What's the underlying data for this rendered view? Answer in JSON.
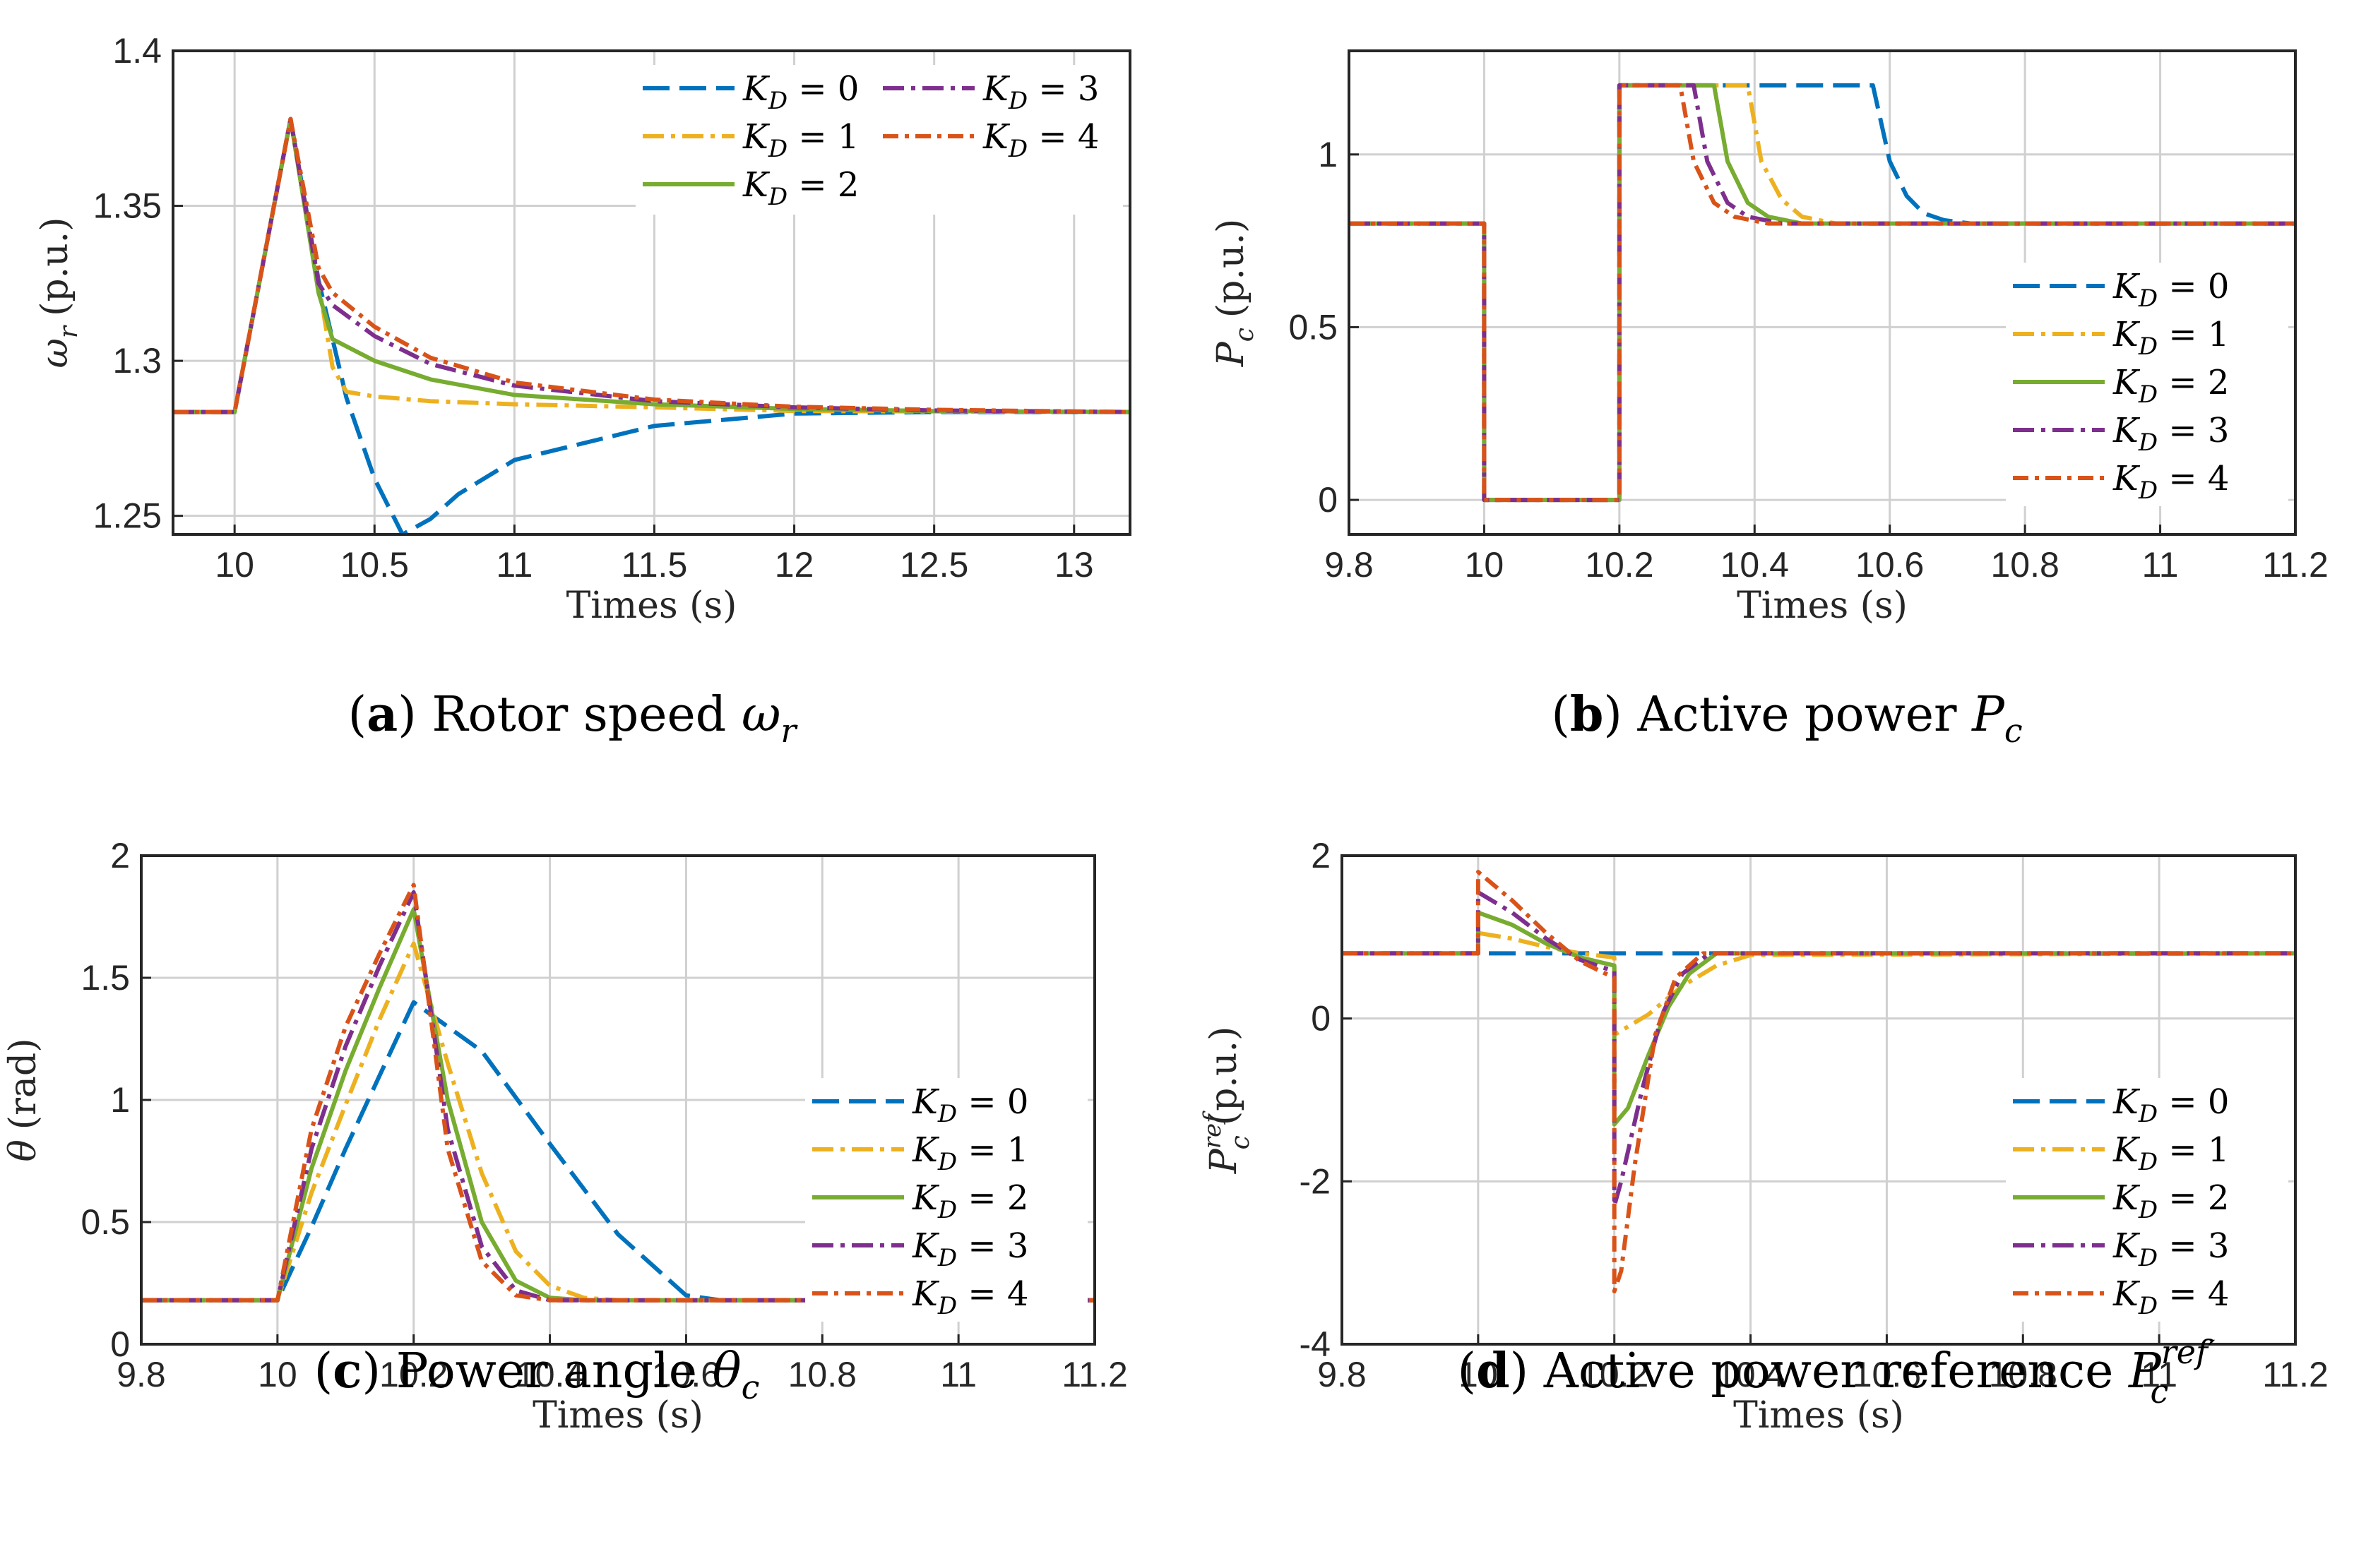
{
  "colors": {
    "series": [
      "#0072BD",
      "#EDB120",
      "#77AC30",
      "#7E2F8E",
      "#D95319"
    ],
    "grid": "#d0d0d0",
    "axis": "#262626"
  },
  "legend": [
    "K_D = 0",
    "K_D = 1",
    "K_D = 2",
    "K_D = 3",
    "K_D = 4"
  ],
  "chart_data": [
    {
      "id": "a",
      "type": "line",
      "caption_label": "(a)",
      "caption_text": "Rotor speed",
      "caption_symbol": "ω",
      "caption_sub": "r",
      "xlabel": "Times (s)",
      "ylabel": "ω_r (p.u.)",
      "ylabel_symbol": "ω",
      "ylabel_sub": "r",
      "ylabel_unit": "(p.u.)",
      "xlim": [
        9.78,
        13.2
      ],
      "ylim": [
        1.244,
        1.4
      ],
      "xticks": [
        10,
        10.5,
        11,
        11.5,
        12,
        12.5,
        13
      ],
      "xtick_labels": [
        "10",
        "10.5",
        "11",
        "11.5",
        "12",
        "12.5",
        "13"
      ],
      "yticks": [
        1.25,
        1.3,
        1.35,
        1.4
      ],
      "ytick_labels": [
        "1.25",
        "1.3",
        "1.35",
        "1.4"
      ],
      "legend_position": "top-right-two-columns",
      "series": [
        {
          "name": "K_D = 0",
          "x": [
            9.78,
            10,
            10.2,
            10.3,
            10.4,
            10.5,
            10.6,
            10.7,
            10.8,
            11,
            11.5,
            12,
            12.5,
            13,
            13.2
          ],
          "y": [
            1.2835,
            1.2835,
            1.378,
            1.326,
            1.288,
            1.262,
            1.244,
            1.249,
            1.257,
            1.268,
            1.279,
            1.283,
            1.2835,
            1.2835,
            1.2835
          ]
        },
        {
          "name": "K_D = 1",
          "x": [
            9.78,
            10,
            10.2,
            10.3,
            10.35,
            10.4,
            10.5,
            10.7,
            11,
            11.5,
            12,
            13.2
          ],
          "y": [
            1.2835,
            1.2835,
            1.378,
            1.325,
            1.298,
            1.29,
            1.2885,
            1.287,
            1.286,
            1.285,
            1.2838,
            1.2835
          ]
        },
        {
          "name": "K_D = 2",
          "x": [
            9.78,
            10,
            10.2,
            10.3,
            10.35,
            10.5,
            10.7,
            11,
            11.5,
            12,
            12.5,
            13.2
          ],
          "y": [
            1.2835,
            1.2835,
            1.378,
            1.322,
            1.307,
            1.3,
            1.294,
            1.289,
            1.286,
            1.2845,
            1.2838,
            1.2835
          ]
        },
        {
          "name": "K_D = 3",
          "x": [
            9.78,
            10,
            10.2,
            10.3,
            10.35,
            10.5,
            10.7,
            11,
            11.5,
            12,
            12.5,
            13.2
          ],
          "y": [
            1.2835,
            1.2835,
            1.378,
            1.325,
            1.318,
            1.308,
            1.299,
            1.292,
            1.287,
            1.285,
            1.284,
            1.2835
          ]
        },
        {
          "name": "K_D = 4",
          "x": [
            9.78,
            10,
            10.2,
            10.3,
            10.35,
            10.5,
            10.7,
            11,
            11.5,
            12,
            12.5,
            13.2
          ],
          "y": [
            1.2835,
            1.2835,
            1.378,
            1.33,
            1.322,
            1.311,
            1.301,
            1.293,
            1.2875,
            1.2852,
            1.2842,
            1.2835
          ]
        }
      ]
    },
    {
      "id": "b",
      "type": "line",
      "caption_label": "(b)",
      "caption_text": "Active power",
      "caption_symbol": "P",
      "caption_sub": "c",
      "xlabel": "Times (s)",
      "ylabel": "P_c (p.u.)",
      "ylabel_symbol": "P",
      "ylabel_sub": "c",
      "ylabel_unit": "(p.u.)",
      "xlim": [
        9.8,
        11.2
      ],
      "ylim": [
        -0.1,
        1.3
      ],
      "xticks": [
        9.8,
        10,
        10.2,
        10.4,
        10.6,
        10.8,
        11,
        11.2
      ],
      "xtick_labels": [
        "9.8",
        "10",
        "10.2",
        "10.4",
        "10.6",
        "10.8",
        "11",
        "11.2"
      ],
      "yticks": [
        0,
        0.5,
        1
      ],
      "ytick_labels": [
        "0",
        "0.5",
        "1"
      ],
      "legend_position": "right-middle",
      "series": [
        {
          "name": "K_D = 0",
          "x": [
            9.8,
            10,
            10,
            10.2,
            10.2,
            10.575,
            10.6,
            10.625,
            10.65,
            10.68,
            10.72,
            11.2
          ],
          "y": [
            0.8,
            0.8,
            0,
            0,
            1.2,
            1.2,
            0.98,
            0.88,
            0.83,
            0.81,
            0.8,
            0.8
          ]
        },
        {
          "name": "K_D = 1",
          "x": [
            9.8,
            10,
            10,
            10.2,
            10.2,
            10.39,
            10.41,
            10.44,
            10.47,
            10.52,
            11.2
          ],
          "y": [
            0.8,
            0.8,
            0,
            0,
            1.2,
            1.2,
            0.98,
            0.87,
            0.82,
            0.8,
            0.8
          ]
        },
        {
          "name": "K_D = 2",
          "x": [
            9.8,
            10,
            10,
            10.2,
            10.2,
            10.34,
            10.36,
            10.39,
            10.42,
            10.47,
            11.2
          ],
          "y": [
            0.8,
            0.8,
            0,
            0,
            1.2,
            1.2,
            0.98,
            0.86,
            0.82,
            0.8,
            0.8
          ]
        },
        {
          "name": "K_D = 3",
          "x": [
            9.8,
            10,
            10,
            10.2,
            10.2,
            10.31,
            10.33,
            10.36,
            10.39,
            10.44,
            11.2
          ],
          "y": [
            0.8,
            0.8,
            0,
            0,
            1.2,
            1.2,
            0.98,
            0.86,
            0.82,
            0.8,
            0.8
          ]
        },
        {
          "name": "K_D = 4",
          "x": [
            9.8,
            10,
            10,
            10.2,
            10.2,
            10.29,
            10.31,
            10.34,
            10.37,
            10.42,
            11.2
          ],
          "y": [
            0.8,
            0.8,
            0,
            0,
            1.2,
            1.2,
            0.98,
            0.86,
            0.82,
            0.8,
            0.8
          ]
        }
      ]
    },
    {
      "id": "c",
      "type": "line",
      "caption_label": "(c)",
      "caption_text": "Power angle",
      "caption_symbol": "θ",
      "caption_sub": "c",
      "xlabel": "Times (s)",
      "ylabel": "θ (rad)",
      "ylabel_symbol": "θ",
      "ylabel_sub": "",
      "ylabel_unit": "(rad)",
      "xlim": [
        9.8,
        11.2
      ],
      "ylim": [
        0,
        2
      ],
      "xticks": [
        9.8,
        10,
        10.2,
        10.4,
        10.6,
        10.8,
        11,
        11.2
      ],
      "xtick_labels": [
        "9.8",
        "10",
        "10.2",
        "10.4",
        "10.6",
        "10.8",
        "11",
        "11.2"
      ],
      "yticks": [
        0,
        0.5,
        1,
        1.5,
        2
      ],
      "ytick_labels": [
        "0",
        "0.5",
        "1",
        "1.5",
        "2"
      ],
      "legend_position": "right-middle",
      "series": [
        {
          "name": "K_D = 0",
          "x": [
            9.8,
            10,
            10.05,
            10.1,
            10.15,
            10.2,
            10.3,
            10.4,
            10.5,
            10.6,
            10.65,
            11.2
          ],
          "y": [
            0.18,
            0.18,
            0.48,
            0.8,
            1.1,
            1.4,
            1.2,
            0.82,
            0.45,
            0.2,
            0.18,
            0.18
          ]
        },
        {
          "name": "K_D = 1",
          "x": [
            9.8,
            10,
            10.05,
            10.1,
            10.15,
            10.2,
            10.25,
            10.3,
            10.35,
            10.4,
            10.45,
            10.5,
            11.2
          ],
          "y": [
            0.18,
            0.18,
            0.62,
            0.98,
            1.33,
            1.64,
            1.15,
            0.7,
            0.38,
            0.24,
            0.19,
            0.18,
            0.18
          ]
        },
        {
          "name": "K_D = 2",
          "x": [
            9.8,
            10,
            10.05,
            10.1,
            10.15,
            10.2,
            10.25,
            10.3,
            10.35,
            10.4,
            10.45,
            11.2
          ],
          "y": [
            0.18,
            0.18,
            0.72,
            1.12,
            1.46,
            1.78,
            1.0,
            0.5,
            0.26,
            0.19,
            0.18,
            0.18
          ]
        },
        {
          "name": "K_D = 3",
          "x": [
            9.8,
            10,
            10.05,
            10.1,
            10.15,
            10.2,
            10.25,
            10.3,
            10.35,
            10.4,
            11.2
          ],
          "y": [
            0.18,
            0.18,
            0.8,
            1.22,
            1.55,
            1.85,
            0.88,
            0.4,
            0.22,
            0.18,
            0.18
          ]
        },
        {
          "name": "K_D = 4",
          "x": [
            9.8,
            10,
            10.05,
            10.1,
            10.15,
            10.2,
            10.25,
            10.3,
            10.35,
            10.4,
            11.2
          ],
          "y": [
            0.18,
            0.18,
            0.88,
            1.3,
            1.6,
            1.88,
            0.8,
            0.34,
            0.2,
            0.18,
            0.18
          ]
        }
      ]
    },
    {
      "id": "d",
      "type": "line",
      "caption_label": "(d)",
      "caption_text": "Active power reference",
      "caption_symbol": "P",
      "caption_sub": "c",
      "caption_sup": "ref′",
      "xlabel": "Times (s)",
      "ylabel": "P_c^ref (p.u.)",
      "ylabel_symbol": "P",
      "ylabel_sub": "c",
      "ylabel_sup": "ref",
      "ylabel_unit": "(p.u.)",
      "xlim": [
        9.8,
        11.2
      ],
      "ylim": [
        -4,
        2
      ],
      "xticks": [
        9.8,
        10,
        10.2,
        10.4,
        10.6,
        10.8,
        11,
        11.2
      ],
      "xtick_labels": [
        "9.8",
        "10",
        "10.2",
        "10.4",
        "10.6",
        "10.8",
        "11",
        "11.2"
      ],
      "yticks": [
        -4,
        -2,
        0,
        2
      ],
      "ytick_labels": [
        "-4",
        "-2",
        "0",
        "2"
      ],
      "legend_position": "right-middle",
      "series": [
        {
          "name": "K_D = 0",
          "x": [
            9.8,
            10,
            10,
            10.2,
            10.2,
            10.21,
            10.21,
            11.2
          ],
          "y": [
            0.8,
            0.8,
            0.8,
            0.8,
            0.8,
            0.8,
            0.8,
            0.8
          ]
        },
        {
          "name": "K_D = 1",
          "x": [
            9.8,
            10,
            10,
            10.05,
            10.1,
            10.15,
            10.2,
            10.2,
            10.25,
            10.3,
            10.35,
            10.4,
            11.2
          ],
          "y": [
            0.8,
            0.8,
            1.05,
            0.98,
            0.88,
            0.8,
            0.75,
            -0.2,
            0.05,
            0.4,
            0.65,
            0.78,
            0.8
          ]
        },
        {
          "name": "K_D = 2",
          "x": [
            9.8,
            10,
            10,
            10.05,
            10.1,
            10.15,
            10.2,
            10.2,
            10.22,
            10.25,
            10.28,
            10.31,
            10.35,
            11.2
          ],
          "y": [
            0.8,
            0.8,
            1.3,
            1.15,
            0.92,
            0.75,
            0.65,
            -1.3,
            -1.1,
            -0.45,
            0.15,
            0.55,
            0.8,
            0.8
          ]
        },
        {
          "name": "K_D = 3",
          "x": [
            9.8,
            10,
            10,
            10.05,
            10.1,
            10.15,
            10.2,
            10.2,
            10.21,
            10.24,
            10.27,
            10.3,
            10.34,
            11.2
          ],
          "y": [
            0.8,
            0.8,
            1.55,
            1.3,
            0.98,
            0.72,
            0.58,
            -2.3,
            -2.0,
            -0.9,
            0.05,
            0.55,
            0.8,
            0.8
          ]
        },
        {
          "name": "K_D = 4",
          "x": [
            9.8,
            10,
            10,
            10.05,
            10.1,
            10.15,
            10.2,
            10.2,
            10.21,
            10.23,
            10.26,
            10.29,
            10.33,
            11.2
          ],
          "y": [
            0.8,
            0.8,
            1.8,
            1.45,
            1.05,
            0.7,
            0.5,
            -3.35,
            -3.1,
            -1.8,
            -0.2,
            0.5,
            0.8,
            0.8
          ]
        }
      ]
    }
  ]
}
